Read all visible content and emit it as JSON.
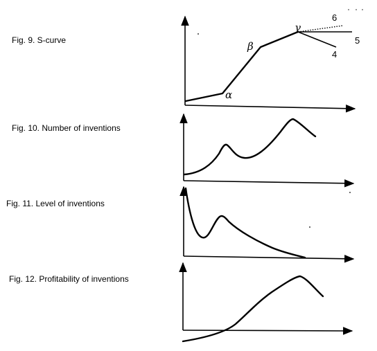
{
  "figures": [
    {
      "caption": "Fig. 9. S-curve",
      "point_labels": [
        "α",
        "β",
        "γ"
      ],
      "branch_labels": [
        "6",
        "5",
        "4"
      ]
    },
    {
      "caption": "Fig. 10. Number of inventions"
    },
    {
      "caption": "Fig. 11. Level of inventions"
    },
    {
      "caption": "Fig. 12. Profitability of inventions"
    }
  ]
}
